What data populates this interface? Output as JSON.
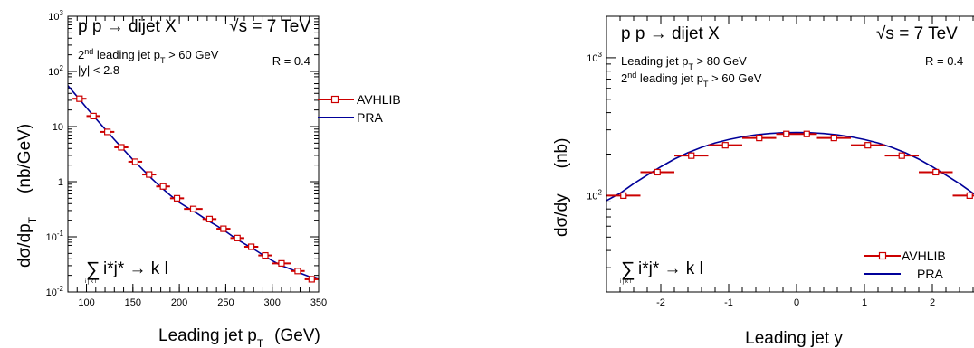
{
  "colors": {
    "avhlib": "#cc0000",
    "pra": "#000099",
    "frame": "#000000"
  },
  "chart_data": [
    {
      "type": "line",
      "ylog": true,
      "xlabel": "Leading jet p",
      "xlabel_sub": "T",
      "xlabel_unit": "(GeV)",
      "ylabel": "dσ/dp",
      "ylabel_sub": "T",
      "ylabel_unit": "(nb/GeV)",
      "xlim": [
        80,
        350
      ],
      "ylim": [
        0.01,
        1000
      ],
      "xticks": [
        100,
        150,
        200,
        250,
        300,
        350
      ],
      "yticks": [
        {
          "value": 0.01,
          "base": "10",
          "exp": "-2"
        },
        {
          "value": 0.1,
          "base": "10",
          "exp": "-1"
        },
        {
          "value": 1,
          "base": "1",
          "exp": ""
        },
        {
          "value": 10,
          "base": "10",
          "exp": ""
        },
        {
          "value": 100,
          "base": "10",
          "exp": "2"
        },
        {
          "value": 1000,
          "base": "10",
          "exp": "3"
        }
      ],
      "process": "p p → dijet X",
      "energy": "√s = 7 TeV",
      "radius": "R = 0.4",
      "cut_line1_pre": "2",
      "cut_line1_sup": "nd",
      "cut_line1_mid": " leading jet p",
      "cut_line1_sub": "T",
      "cut_line1_post": " > 60 GeV",
      "cut_line2": "|y| < 2.8",
      "subprocess_sum": "∑",
      "subprocess_idx": "i j k l",
      "subprocess": "i*j* → k l",
      "legend_placement": "right",
      "series": [
        {
          "name": "AVHLIB",
          "style": "points-with-xerror",
          "bins": [
            {
              "x": 92.5,
              "xlo": 85,
              "xhi": 100,
              "y": 32
            },
            {
              "x": 107.5,
              "xlo": 100,
              "xhi": 115,
              "y": 15.5
            },
            {
              "x": 122.5,
              "xlo": 115,
              "xhi": 130,
              "y": 8
            },
            {
              "x": 137.5,
              "xlo": 130,
              "xhi": 145,
              "y": 4.2
            },
            {
              "x": 152.5,
              "xlo": 145,
              "xhi": 160,
              "y": 2.3
            },
            {
              "x": 167.5,
              "xlo": 160,
              "xhi": 175,
              "y": 1.35
            },
            {
              "x": 182.5,
              "xlo": 175,
              "xhi": 190,
              "y": 0.82
            },
            {
              "x": 197.5,
              "xlo": 190,
              "xhi": 205,
              "y": 0.5
            },
            {
              "x": 215,
              "xlo": 205,
              "xhi": 225,
              "y": 0.32
            },
            {
              "x": 232.5,
              "xlo": 225,
              "xhi": 240,
              "y": 0.21
            },
            {
              "x": 247.5,
              "xlo": 240,
              "xhi": 255,
              "y": 0.14
            },
            {
              "x": 262.5,
              "xlo": 255,
              "xhi": 270,
              "y": 0.095
            },
            {
              "x": 277.5,
              "xlo": 270,
              "xhi": 285,
              "y": 0.066
            },
            {
              "x": 292.5,
              "xlo": 285,
              "xhi": 300,
              "y": 0.046
            },
            {
              "x": 310,
              "xlo": 300,
              "xhi": 320,
              "y": 0.033
            },
            {
              "x": 327.5,
              "xlo": 320,
              "xhi": 335,
              "y": 0.024
            },
            {
              "x": 342.5,
              "xlo": 335,
              "xhi": 350,
              "y": 0.017
            }
          ]
        },
        {
          "name": "PRA",
          "style": "line",
          "points": [
            [
              80,
              55
            ],
            [
              90,
              35
            ],
            [
              100,
              22
            ],
            [
              110,
              14
            ],
            [
              120,
              9
            ],
            [
              130,
              5.8
            ],
            [
              140,
              3.8
            ],
            [
              150,
              2.5
            ],
            [
              160,
              1.7
            ],
            [
              170,
              1.15
            ],
            [
              180,
              0.8
            ],
            [
              190,
              0.57
            ],
            [
              200,
              0.42
            ],
            [
              210,
              0.33
            ],
            [
              220,
              0.26
            ],
            [
              230,
              0.2
            ],
            [
              240,
              0.16
            ],
            [
              250,
              0.125
            ],
            [
              260,
              0.095
            ],
            [
              270,
              0.075
            ],
            [
              280,
              0.06
            ],
            [
              290,
              0.047
            ],
            [
              300,
              0.037
            ],
            [
              310,
              0.03
            ],
            [
              320,
              0.026
            ],
            [
              330,
              0.022
            ],
            [
              340,
              0.019
            ],
            [
              350,
              0.017
            ]
          ]
        }
      ]
    },
    {
      "type": "line",
      "ylog": true,
      "xlabel": "Leading jet y",
      "ylabel": "dσ/dy",
      "ylabel_unit": "(nb)",
      "xlim": [
        -2.8,
        2.8
      ],
      "ylim": [
        20,
        2000
      ],
      "xticks": [
        -2,
        -1,
        0,
        1,
        2
      ],
      "yticks": [
        {
          "value": 100,
          "base": "10",
          "exp": "2"
        },
        {
          "value": 1000,
          "base": "10",
          "exp": "3"
        }
      ],
      "process": "p p → dijet X",
      "energy": "√s = 7 TeV",
      "radius": "R = 0.4",
      "cut_line1_pre": "Leading jet p",
      "cut_line1_sub": "T",
      "cut_line1_post": " > 80 GeV",
      "cut_line2_pre": "2",
      "cut_line2_sup": "nd",
      "cut_line2_mid": " leading jet p",
      "cut_line2_sub": "T",
      "cut_line2_post": " > 60 GeV",
      "subprocess_sum": "∑",
      "subprocess_idx": "i j k l",
      "subprocess": "i*j* → k l",
      "legend_placement": "bottom-right",
      "series": [
        {
          "name": "AVHLIB",
          "style": "points-with-xerror",
          "bins": [
            {
              "x": -2.55,
              "xlo": -2.8,
              "xhi": -2.3,
              "y": 100
            },
            {
              "x": -2.05,
              "xlo": -2.3,
              "xhi": -1.8,
              "y": 148
            },
            {
              "x": -1.55,
              "xlo": -1.8,
              "xhi": -1.3,
              "y": 195
            },
            {
              "x": -1.05,
              "xlo": -1.3,
              "xhi": -0.8,
              "y": 232
            },
            {
              "x": -0.55,
              "xlo": -0.8,
              "xhi": -0.3,
              "y": 262
            },
            {
              "x": -0.15,
              "xlo": -0.3,
              "xhi": 0.0,
              "y": 280
            },
            {
              "x": 0.15,
              "xlo": 0.0,
              "xhi": 0.3,
              "y": 280
            },
            {
              "x": 0.55,
              "xlo": 0.3,
              "xhi": 0.8,
              "y": 262
            },
            {
              "x": 1.05,
              "xlo": 0.8,
              "xhi": 1.3,
              "y": 232
            },
            {
              "x": 1.55,
              "xlo": 1.3,
              "xhi": 1.8,
              "y": 195
            },
            {
              "x": 2.05,
              "xlo": 1.8,
              "xhi": 2.3,
              "y": 148
            },
            {
              "x": 2.55,
              "xlo": 2.3,
              "xhi": 2.8,
              "y": 100
            }
          ]
        },
        {
          "name": "PRA",
          "style": "line",
          "points": [
            [
              -2.8,
              92
            ],
            [
              -2.6,
              104
            ],
            [
              -2.4,
              122
            ],
            [
              -2.2,
              141
            ],
            [
              -2.0,
              162
            ],
            [
              -1.8,
              184
            ],
            [
              -1.6,
              205
            ],
            [
              -1.4,
              224
            ],
            [
              -1.2,
              241
            ],
            [
              -1.0,
              255
            ],
            [
              -0.8,
              267
            ],
            [
              -0.6,
              276
            ],
            [
              -0.4,
              282
            ],
            [
              -0.2,
              286
            ],
            [
              0.0,
              287
            ],
            [
              0.2,
              286
            ],
            [
              0.4,
              282
            ],
            [
              0.6,
              276
            ],
            [
              0.8,
              267
            ],
            [
              1.0,
              255
            ],
            [
              1.2,
              241
            ],
            [
              1.4,
              224
            ],
            [
              1.6,
              205
            ],
            [
              1.8,
              184
            ],
            [
              2.0,
              162
            ],
            [
              2.2,
              141
            ],
            [
              2.4,
              122
            ],
            [
              2.6,
              104
            ],
            [
              2.8,
              92
            ]
          ]
        }
      ]
    }
  ]
}
